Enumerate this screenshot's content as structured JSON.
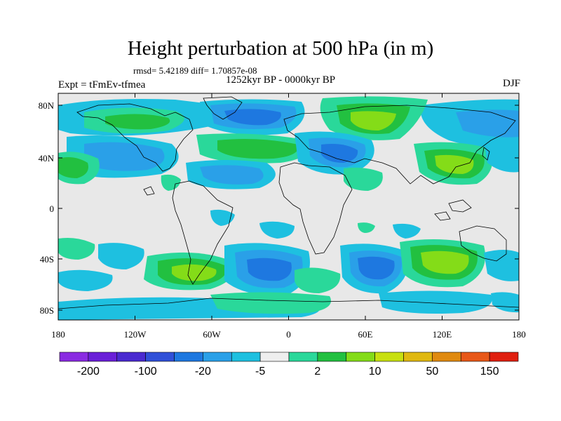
{
  "header": {
    "title": "Height perturbation at 500 hPa (in m)",
    "stats": "rmsd= 5.42189 diff= 1.70857e-08",
    "period": "1252kyr BP - 0000kyr BP",
    "experiment": "Expt = tFmEv-tfmea",
    "season": "DJF"
  },
  "axes": {
    "lat_labels": [
      "80N",
      "40N",
      "0",
      "40S",
      "80S"
    ],
    "lon_labels": [
      "180",
      "120W",
      "60W",
      "0",
      "60E",
      "120E",
      "180"
    ]
  },
  "colorbar": {
    "labels": [
      "-200",
      "-100",
      "-20",
      "-5",
      "2",
      "10",
      "50",
      "150"
    ],
    "colors": [
      "#8a2be2",
      "#6a1fd8",
      "#4a2ad0",
      "#3050d8",
      "#1e78e0",
      "#2aa0e8",
      "#1ec0e0",
      "#eeeeee",
      "#2ad89a",
      "#22c040",
      "#84dc18",
      "#c8e010",
      "#e0b810",
      "#e08a10",
      "#e85818",
      "#e02010"
    ]
  },
  "map_colors": {
    "background": "#e8e8e8",
    "neg_light": "#1ec0e0",
    "neg_mid": "#2aa0e8",
    "neg_strong": "#1e78e0",
    "neg_max": "#3050d8",
    "pos_light": "#2ad89a",
    "pos_mid": "#22c040",
    "pos_strong": "#84dc18",
    "pos_max": "#c8e010"
  }
}
